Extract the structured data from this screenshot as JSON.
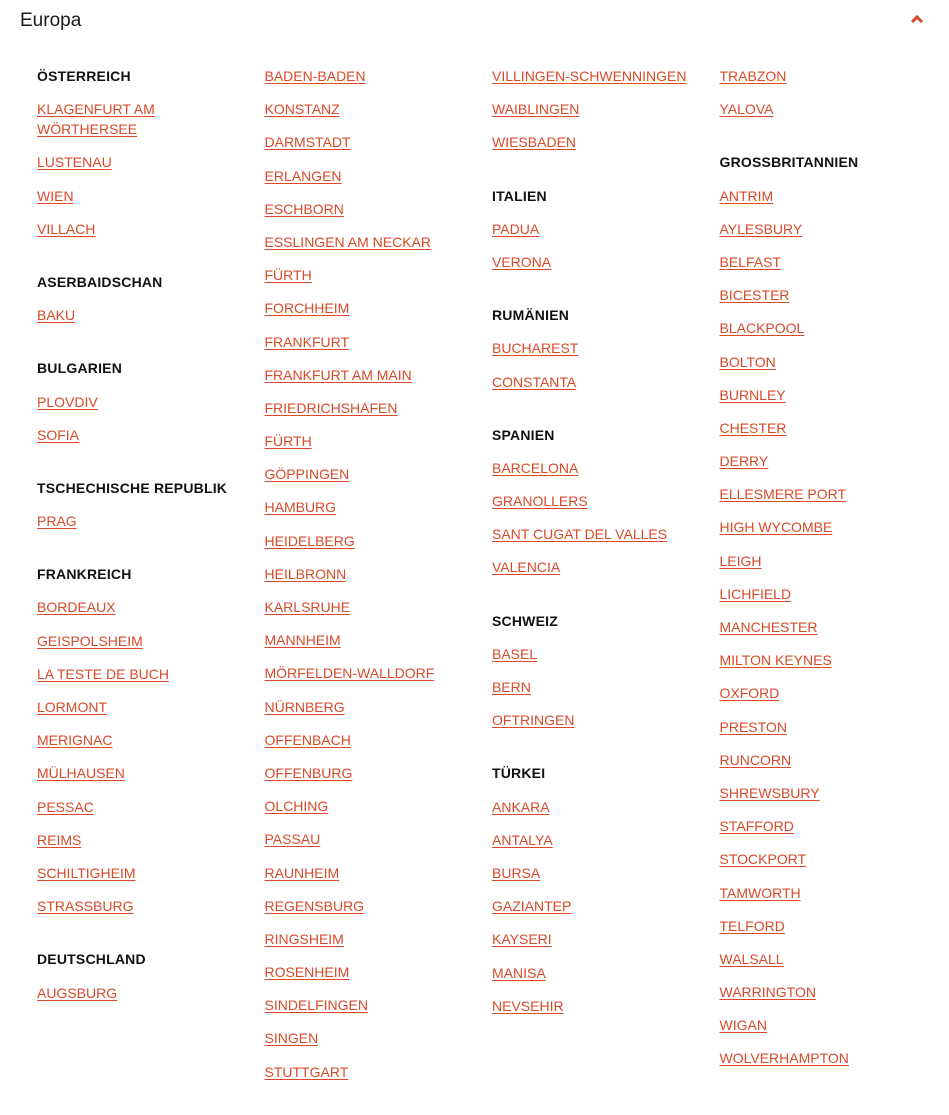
{
  "header": {
    "title": "Europa",
    "toggle_icon": "chevron-up-icon",
    "accent": "#d9492a"
  },
  "columns": [
    [
      {
        "heading": "ÖSTERREICH",
        "cities": [
          "KLAGENFURT AM WÖRTHERSEE",
          "LUSTENAU",
          "WIEN",
          "VILLACH"
        ]
      },
      {
        "heading": "ASERBAIDSCHAN",
        "cities": [
          "BAKU"
        ]
      },
      {
        "heading": "BULGARIEN",
        "cities": [
          "PLOVDIV",
          "SOFIA"
        ]
      },
      {
        "heading": "TSCHECHISCHE REPUBLIK",
        "cities": [
          "PRAG"
        ]
      },
      {
        "heading": "FRANKREICH",
        "cities": [
          "BORDEAUX",
          "GEISPOLSHEIM",
          "LA TESTE DE BUCH",
          "LORMONT",
          "MERIGNAC",
          "MÜLHAUSEN",
          "PESSAC",
          "REIMS",
          "SCHILTIGHEIM",
          "STRASSBURG"
        ]
      },
      {
        "heading": "DEUTSCHLAND",
        "cities": [
          "AUGSBURG"
        ]
      }
    ],
    [
      {
        "cities": [
          "BADEN-BADEN",
          "KONSTANZ",
          "DARMSTADT",
          "ERLANGEN",
          "ESCHBORN",
          "ESSLINGEN AM NECKAR",
          "FÜRTH",
          "FORCHHEIM",
          "FRANKFURT",
          "FRANKFURT AM MAIN",
          "FRIEDRICHSHAFEN",
          "FÜRTH",
          "GÖPPINGEN",
          "HAMBURG",
          "HEIDELBERG",
          "HEILBRONN",
          "KARLSRUHE",
          "MANNHEIM",
          "MÖRFELDEN-WALLDORF",
          "NÜRNBERG",
          "OFFENBACH",
          "OFFENBURG",
          "OLCHING",
          "PASSAU",
          "RAUNHEIM",
          "REGENSBURG",
          "RINGSHEIM",
          "ROSENHEIM",
          "SINDELFINGEN",
          "SINGEN",
          "STUTTGART"
        ]
      }
    ],
    [
      {
        "cities": [
          "VILLINGEN-SCHWENNINGEN",
          "WAIBLINGEN",
          "WIESBADEN"
        ]
      },
      {
        "heading": "ITALIEN",
        "cities": [
          "PADUA",
          "VERONA"
        ]
      },
      {
        "heading": "RUMÄNIEN",
        "cities": [
          "BUCHAREST",
          "CONSTANTA"
        ]
      },
      {
        "heading": "SPANIEN",
        "cities": [
          "BARCELONA",
          "GRANOLLERS",
          "SANT CUGAT DEL VALLES",
          "VALENCIA"
        ]
      },
      {
        "heading": "SCHWEIZ",
        "cities": [
          "BASEL",
          "BERN",
          "OFTRINGEN"
        ]
      },
      {
        "heading": "TÜRKEI",
        "cities": [
          "ANKARA",
          "ANTALYA",
          "BURSA",
          "GAZIANTEP",
          "KAYSERI",
          "MANISA",
          "NEVSEHIR"
        ]
      }
    ],
    [
      {
        "cities": [
          "TRABZON",
          "YALOVA"
        ]
      },
      {
        "heading": "GROSSBRITANNIEN",
        "cities": [
          "ANTRIM",
          "AYLESBURY",
          "BELFAST",
          "BICESTER",
          "BLACKPOOL",
          "BOLTON",
          "BURNLEY",
          "CHESTER",
          "DERRY",
          "ELLESMERE PORT",
          "HIGH WYCOMBE",
          "LEIGH",
          "LICHFIELD",
          "MANCHESTER",
          "MILTON KEYNES",
          "OXFORD",
          "PRESTON",
          "RUNCORN",
          "SHREWSBURY",
          "STAFFORD",
          "STOCKPORT",
          "TAMWORTH",
          "TELFORD",
          "WALSALL",
          "WARRINGTON",
          "WIGAN",
          "WOLVERHAMPTON"
        ]
      }
    ]
  ]
}
